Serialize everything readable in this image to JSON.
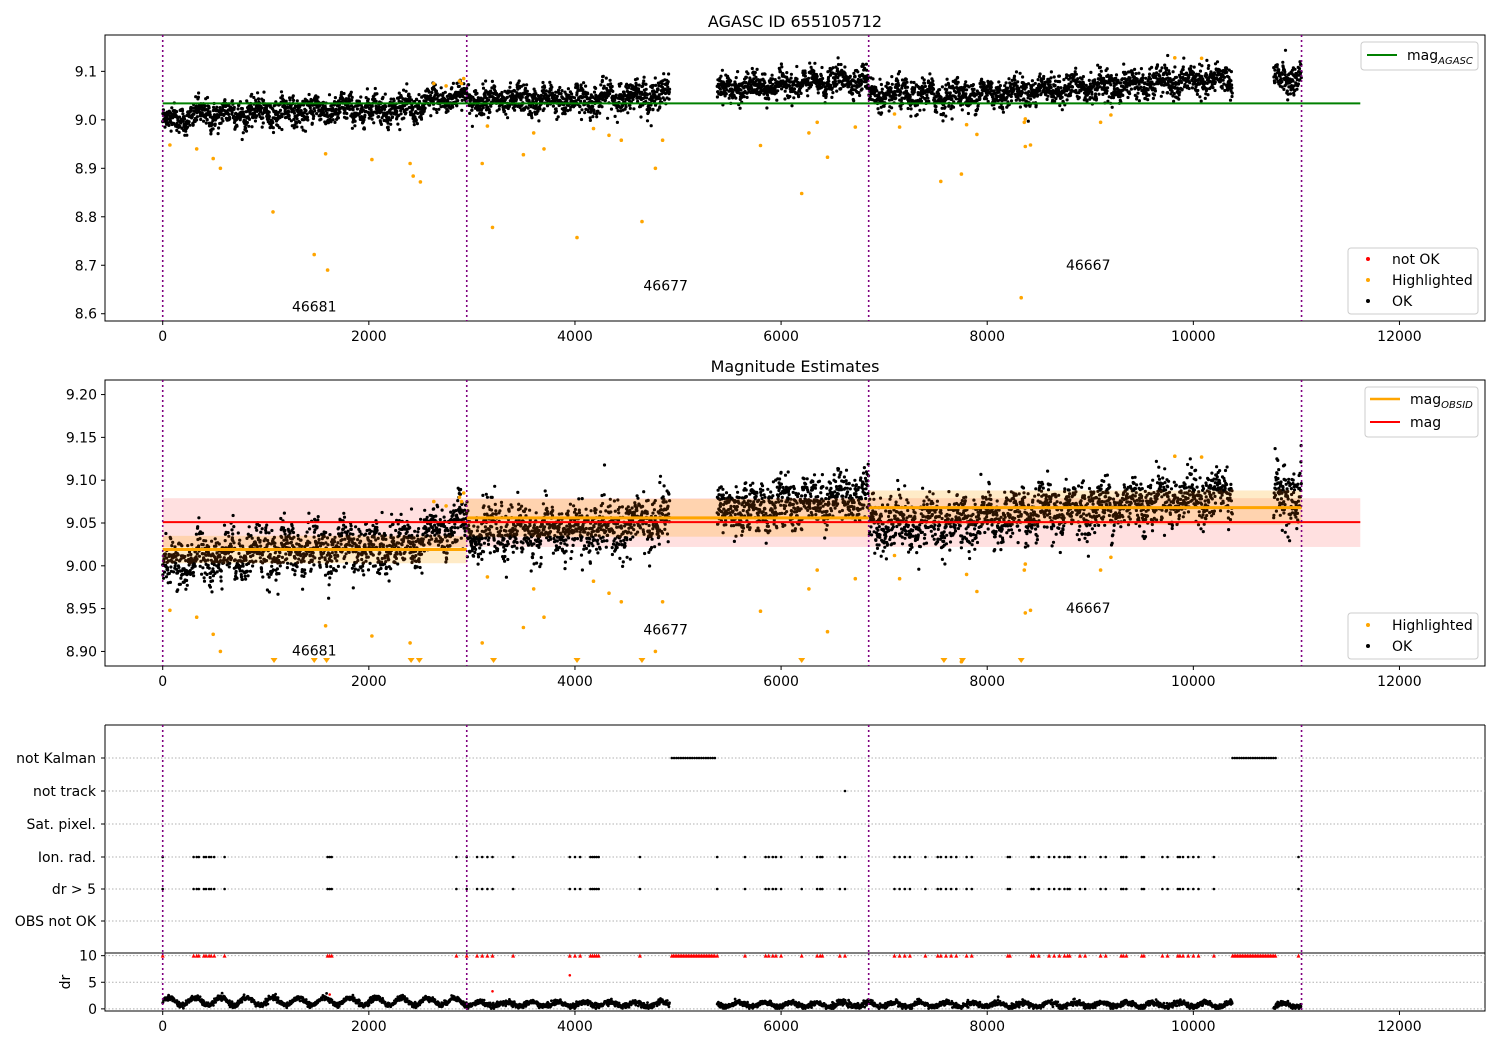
{
  "chart_data": [
    {
      "id": "agasc",
      "type": "scatter",
      "title": "AGASC ID 655105712",
      "xlim": [
        -560,
        12830
      ],
      "ylim": [
        8.585,
        9.175
      ],
      "xticks": [
        0,
        2000,
        4000,
        6000,
        8000,
        10000,
        12000
      ],
      "yticks": [
        8.6,
        8.7,
        8.8,
        8.9,
        9.0,
        9.1
      ],
      "ytick_labels": [
        "8.6",
        "8.7",
        "8.8",
        "8.9",
        "9.0",
        "9.1"
      ],
      "obsid_boundaries": [
        0,
        2950,
        6850,
        11050
      ],
      "obsid_labels": [
        {
          "text": "46681",
          "x": 1470,
          "y": 8.605
        },
        {
          "text": "46677",
          "x": 4880,
          "y": 8.648
        },
        {
          "text": "46667",
          "x": 8980,
          "y": 8.69
        }
      ],
      "mag_agasc": {
        "value": 9.034,
        "x_start": 0,
        "x_end": 11620,
        "color": "#008000"
      },
      "ok_segments": [
        {
          "x_start": 0,
          "x_end": 300,
          "mean_start": 9.0,
          "mean_end": 9.005,
          "amp": 0.012
        },
        {
          "x_start": 300,
          "x_end": 1500,
          "mean_start": 9.01,
          "mean_end": 9.02,
          "amp": 0.014
        },
        {
          "x_start": 1500,
          "x_end": 2500,
          "mean_start": 9.02,
          "mean_end": 9.025,
          "amp": 0.014
        },
        {
          "x_start": 2500,
          "x_end": 2950,
          "mean_start": 9.03,
          "mean_end": 9.055,
          "amp": 0.014
        },
        {
          "x_start": 2950,
          "x_end": 4000,
          "mean_start": 9.04,
          "mean_end": 9.04,
          "amp": 0.014
        },
        {
          "x_start": 4000,
          "x_end": 4920,
          "mean_start": 9.04,
          "mean_end": 9.055,
          "amp": 0.015
        },
        {
          "x_start": 5380,
          "x_end": 6850,
          "mean_start": 9.062,
          "mean_end": 9.085,
          "amp": 0.013
        },
        {
          "x_start": 6850,
          "x_end": 7600,
          "mean_start": 9.05,
          "mean_end": 9.05,
          "amp": 0.015
        },
        {
          "x_start": 7600,
          "x_end": 8500,
          "mean_start": 9.05,
          "mean_end": 9.06,
          "amp": 0.014
        },
        {
          "x_start": 8500,
          "x_end": 10380,
          "mean_start": 9.062,
          "mean_end": 9.085,
          "amp": 0.014
        },
        {
          "x_start": 10780,
          "x_end": 11050,
          "mean_start": 9.08,
          "mean_end": 9.085,
          "amp": 0.016
        }
      ],
      "highlighted": [
        [
          70,
          8.948
        ],
        [
          330,
          8.94
        ],
        [
          490,
          8.92
        ],
        [
          560,
          8.9
        ],
        [
          1070,
          8.81
        ],
        [
          1470,
          8.722
        ],
        [
          1600,
          8.69
        ],
        [
          1580,
          8.93
        ],
        [
          2030,
          8.918
        ],
        [
          2400,
          8.91
        ],
        [
          2430,
          8.884
        ],
        [
          2500,
          8.872
        ],
        [
          3100,
          8.91
        ],
        [
          3150,
          8.987
        ],
        [
          3200,
          8.778
        ],
        [
          3500,
          8.928
        ],
        [
          3600,
          8.973
        ],
        [
          3700,
          8.94
        ],
        [
          4020,
          8.757
        ],
        [
          4180,
          8.982
        ],
        [
          4330,
          8.968
        ],
        [
          4450,
          8.958
        ],
        [
          4650,
          8.79
        ],
        [
          4780,
          8.9
        ],
        [
          4850,
          8.958
        ],
        [
          5800,
          8.947
        ],
        [
          6200,
          8.848
        ],
        [
          6270,
          8.973
        ],
        [
          6350,
          8.995
        ],
        [
          6450,
          8.923
        ],
        [
          6720,
          8.985
        ],
        [
          7100,
          9.012
        ],
        [
          7150,
          8.985
        ],
        [
          7550,
          8.873
        ],
        [
          7750,
          8.888
        ],
        [
          7800,
          8.99
        ],
        [
          7900,
          8.97
        ],
        [
          8330,
          8.633
        ],
        [
          8360,
          8.995
        ],
        [
          8370,
          9.002
        ],
        [
          8370,
          8.945
        ],
        [
          8420,
          8.948
        ],
        [
          9100,
          8.995
        ],
        [
          9200,
          9.01
        ],
        [
          2630,
          9.075
        ],
        [
          2750,
          9.07
        ],
        [
          2880,
          9.08
        ],
        [
          2900,
          9.075
        ],
        [
          2920,
          9.085
        ],
        [
          9820,
          9.128
        ],
        [
          10080,
          9.127
        ]
      ],
      "legend_line": [
        "mag_AGASC"
      ],
      "legend_markers": [
        {
          "label": "not OK",
          "color": "#ff0000"
        },
        {
          "label": "Highlighted",
          "color": "#ffa500"
        },
        {
          "label": "OK",
          "color": "#000000"
        }
      ]
    },
    {
      "id": "estimates",
      "type": "scatter",
      "title": "Magnitude Estimates",
      "xlim": [
        -560,
        12830
      ],
      "ylim": [
        8.883,
        9.217
      ],
      "xticks": [
        0,
        2000,
        4000,
        6000,
        8000,
        10000,
        12000
      ],
      "yticks": [
        8.9,
        8.95,
        9.0,
        9.05,
        9.1,
        9.15,
        9.2
      ],
      "ytick_labels": [
        "8.90",
        "8.95",
        "9.00",
        "9.05",
        "9.10",
        "9.15",
        "9.20"
      ],
      "obsid_boundaries": [
        0,
        2950,
        6850,
        11050
      ],
      "obsid_labels": [
        {
          "text": "46681",
          "x": 1470,
          "y": 8.895
        },
        {
          "text": "46677",
          "x": 4880,
          "y": 8.92
        },
        {
          "text": "46667",
          "x": 8980,
          "y": 8.945
        }
      ],
      "mag": {
        "value": 9.051,
        "lo": 9.022,
        "hi": 9.079,
        "x_start": 0,
        "x_end": 11620,
        "color": "#ff0000"
      },
      "mag_obsid": [
        {
          "x_start": 0,
          "x_end": 2950,
          "value": 9.019,
          "lo": 9.003,
          "hi": 9.035
        },
        {
          "x_start": 2950,
          "x_end": 6850,
          "value": 9.056,
          "lo": 9.034,
          "hi": 9.078
        },
        {
          "x_start": 6850,
          "x_end": 11050,
          "value": 9.068,
          "lo": 9.048,
          "hi": 9.088
        }
      ],
      "lower_limit_markers": [
        1080,
        1470,
        1590,
        2410,
        2490,
        3210,
        4020,
        4650,
        6200,
        7580,
        7760,
        8330
      ],
      "legend_lines": [
        {
          "label": "mag_OBSID",
          "color": "#ffa500"
        },
        {
          "label": "mag",
          "color": "#ff0000"
        }
      ],
      "legend_markers": [
        {
          "label": "Highlighted",
          "color": "#ffa500"
        },
        {
          "label": "OK",
          "color": "#000000"
        }
      ]
    },
    {
      "id": "flags",
      "type": "scatter",
      "xlim": [
        -560,
        12830
      ],
      "categories": [
        "not Kalman",
        "not track",
        "Sat. pixel.",
        "Ion. rad.",
        "dr > 5",
        "OBS not OK"
      ],
      "obsid_boundaries": [
        0,
        2950,
        6850,
        11050
      ],
      "not_kalman_ranges": [
        [
          4940,
          5360
        ],
        [
          10380,
          10800
        ]
      ],
      "not_track_x": [
        6620
      ],
      "ion_rad_x": [
        0,
        300,
        330,
        350,
        400,
        420,
        450,
        470,
        500,
        600,
        1600,
        1620,
        1640,
        2850,
        2950,
        3050,
        3100,
        3150,
        3200,
        3400,
        3950,
        4000,
        4050,
        4150,
        4170,
        4190,
        4210,
        4230,
        4630,
        5380,
        5650,
        5850,
        5880,
        5920,
        5950,
        6000,
        6200,
        6350,
        6380,
        6400,
        6570,
        6620,
        7100,
        7150,
        7200,
        7250,
        7400,
        7520,
        7550,
        7600,
        7650,
        7700,
        7800,
        7850,
        8200,
        8220,
        8430,
        8450,
        8500,
        8600,
        8650,
        8700,
        8750,
        8780,
        8800,
        8900,
        8950,
        9100,
        9150,
        9300,
        9320,
        9350,
        9500,
        9520,
        9700,
        9750,
        9850,
        9870,
        9900,
        9950,
        10000,
        10050,
        10200,
        11020
      ],
      "dr_gt5_x": [
        0,
        300,
        330,
        350,
        400,
        420,
        450,
        470,
        500,
        600,
        1600,
        1620,
        1640,
        2850,
        2950,
        3050,
        3100,
        3150,
        3200,
        3400,
        3950,
        4000,
        4050,
        4150,
        4170,
        4190,
        4210,
        4230,
        4630,
        5380,
        5650,
        5850,
        5880,
        5920,
        5950,
        6000,
        6200,
        6350,
        6380,
        6400,
        6570,
        6620,
        7100,
        7150,
        7200,
        7250,
        7400,
        7520,
        7550,
        7600,
        7650,
        7700,
        7800,
        7850,
        8200,
        8220,
        8430,
        8450,
        8500,
        8600,
        8650,
        8700,
        8750,
        8780,
        8800,
        8900,
        8950,
        9100,
        9150,
        9300,
        9320,
        9350,
        9500,
        9520,
        9700,
        9750,
        9850,
        9870,
        9900,
        9950,
        10000,
        10050,
        10200,
        11020
      ]
    },
    {
      "id": "dr",
      "type": "scatter",
      "ylabel": "dr",
      "xlim": [
        -560,
        12830
      ],
      "ylim": [
        -0.4,
        10.5
      ],
      "yticks": [
        0,
        5,
        10
      ],
      "ytick_labels": [
        "0",
        "5",
        "10"
      ],
      "xticks": [
        0,
        2000,
        4000,
        6000,
        8000,
        10000,
        12000
      ],
      "obsid_boundaries": [
        0,
        2950,
        6850,
        11050
      ],
      "dr_segments": [
        {
          "x_start": 0,
          "x_end": 2950,
          "mean": 1.4,
          "amp": 0.7
        },
        {
          "x_start": 2950,
          "x_end": 4920,
          "mean": 0.9,
          "amp": 0.4
        },
        {
          "x_start": 5380,
          "x_end": 10380,
          "mean": 0.8,
          "amp": 0.4
        },
        {
          "x_start": 10780,
          "x_end": 11050,
          "mean": 0.7,
          "amp": 0.4
        }
      ],
      "dr_outliers": [
        [
          3200,
          3.3
        ],
        [
          3950,
          6.3
        ],
        [
          1620,
          2.7
        ]
      ],
      "clipped_x_extra": [
        4940,
        5360,
        10380,
        10800
      ]
    }
  ]
}
